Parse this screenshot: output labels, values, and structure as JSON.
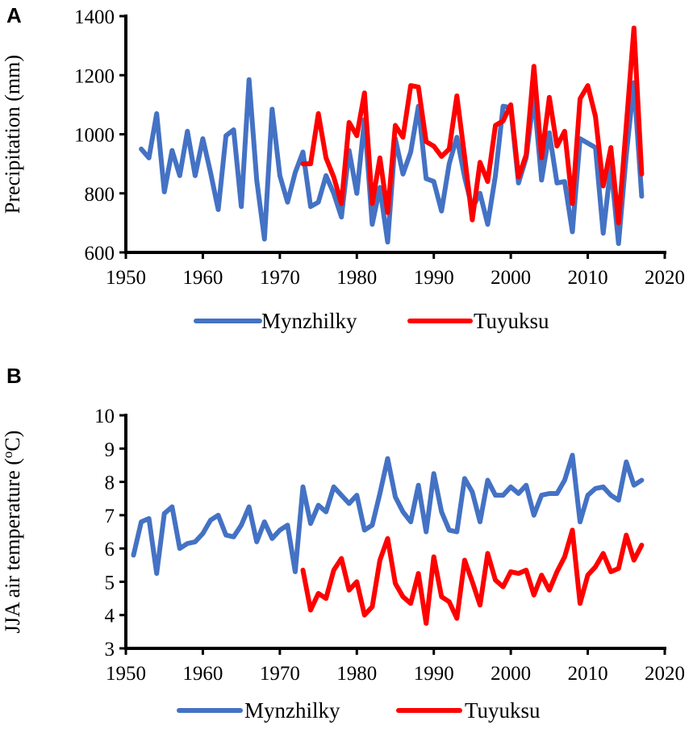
{
  "chart_data": [
    {
      "panel": "A",
      "type": "line",
      "title": "",
      "xlabel": "",
      "ylabel": "Precipitation (mm)",
      "xlim": [
        1950,
        2020
      ],
      "ylim": [
        600,
        1400
      ],
      "xticks": [
        1950,
        1960,
        1970,
        1980,
        1990,
        2000,
        2010,
        2020
      ],
      "yticks": [
        600,
        800,
        1000,
        1200,
        1400
      ],
      "legend": "bottom",
      "series": [
        {
          "name": "Mynzhilky",
          "color": "#4472C4",
          "start_year": 1952,
          "values": [
            950,
            920,
            1070,
            805,
            945,
            860,
            1010,
            860,
            985,
            870,
            745,
            995,
            1015,
            755,
            1185,
            845,
            645,
            1085,
            860,
            770,
            870,
            940,
            755,
            770,
            860,
            800,
            720,
            945,
            800,
            1050,
            695,
            820,
            635,
            985,
            865,
            940,
            1095,
            850,
            840,
            740,
            900,
            990,
            855,
            750,
            800,
            695,
            860,
            1095,
            1090,
            835,
            920,
            1130,
            845,
            1005,
            835,
            840,
            670,
            985,
            970,
            955,
            665,
            895,
            630,
            930,
            1175,
            790
          ]
        },
        {
          "name": "Tuyuksu",
          "color": "#FF0000",
          "start_year": 1973,
          "values": [
            900,
            900,
            1070,
            920,
            855,
            765,
            1040,
            995,
            1140,
            765,
            920,
            735,
            1030,
            990,
            1165,
            1160,
            975,
            960,
            925,
            950,
            1130,
            925,
            710,
            905,
            840,
            1030,
            1045,
            1100,
            855,
            930,
            1230,
            920,
            1125,
            960,
            1010,
            765,
            1120,
            1165,
            1060,
            825,
            955,
            700,
            1030,
            1360,
            865
          ]
        }
      ]
    },
    {
      "panel": "B",
      "type": "line",
      "title": "",
      "xlabel": "",
      "ylabel": "JJA air temperature (oC)",
      "ylabel_main": "JJA air temperature (",
      "ylabel_sup": "o",
      "ylabel_end": "C)",
      "xlim": [
        1950,
        2020
      ],
      "ylim": [
        3,
        10
      ],
      "xticks": [
        1950,
        1960,
        1970,
        1980,
        1990,
        2000,
        2010,
        2020
      ],
      "yticks": [
        3,
        4,
        5,
        6,
        7,
        8,
        9,
        10
      ],
      "legend": "bottom",
      "series": [
        {
          "name": "Mynzhilky",
          "color": "#4472C4",
          "start_year": 1951,
          "values": [
            5.8,
            6.8,
            6.9,
            5.25,
            7.05,
            7.25,
            6.0,
            6.15,
            6.2,
            6.45,
            6.85,
            7.0,
            6.4,
            6.35,
            6.7,
            7.25,
            6.2,
            6.8,
            6.3,
            6.55,
            6.7,
            5.3,
            7.85,
            6.75,
            7.3,
            7.1,
            7.85,
            7.6,
            7.35,
            7.6,
            6.55,
            6.7,
            7.65,
            8.7,
            7.55,
            7.1,
            6.8,
            7.9,
            6.5,
            8.25,
            7.1,
            6.55,
            6.5,
            8.1,
            7.7,
            6.8,
            8.05,
            7.6,
            7.6,
            7.85,
            7.65,
            7.9,
            7.0,
            7.6,
            7.65,
            7.65,
            8.05,
            8.8,
            6.8,
            7.6,
            7.8,
            7.85,
            7.6,
            7.45,
            8.6,
            7.9,
            8.05
          ]
        },
        {
          "name": "Tuyuksu",
          "color": "#FF0000",
          "start_year": 1973,
          "values": [
            5.35,
            4.15,
            4.65,
            4.5,
            5.35,
            5.7,
            4.75,
            5.0,
            4.0,
            4.25,
            5.65,
            6.3,
            4.95,
            4.55,
            4.35,
            5.25,
            3.75,
            5.75,
            4.55,
            4.4,
            3.9,
            5.65,
            5.0,
            4.3,
            5.85,
            5.05,
            4.85,
            5.3,
            5.25,
            5.35,
            4.6,
            5.2,
            4.75,
            5.3,
            5.75,
            6.55,
            4.35,
            5.2,
            5.45,
            5.85,
            5.3,
            5.4,
            6.4,
            5.65,
            6.1
          ]
        }
      ]
    }
  ]
}
